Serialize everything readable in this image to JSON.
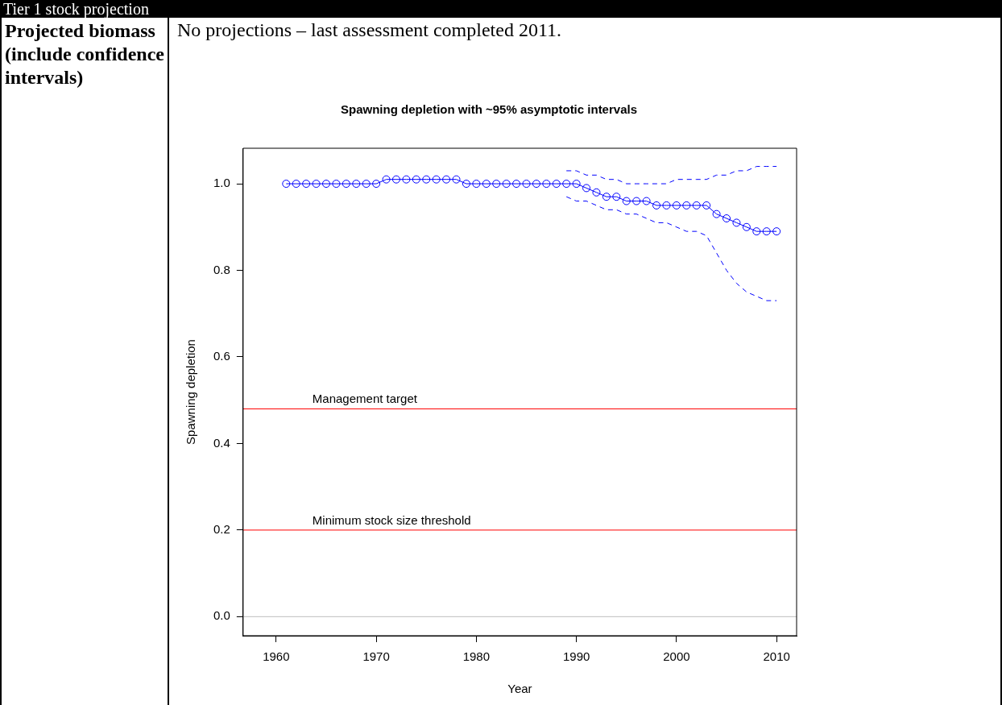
{
  "chart_data": {
    "type": "line",
    "title": "Spawning depletion with ~95% asymptotic intervals",
    "xlabel": "Year",
    "ylabel": "Spawning depletion",
    "annotations": [
      "Tier 1 stock projection",
      "Projected biomass (include confidence intervals)",
      "No projections – last assessment completed 2011."
    ],
    "x": [
      1961,
      1962,
      1963,
      1964,
      1965,
      1966,
      1967,
      1968,
      1969,
      1970,
      1971,
      1972,
      1973,
      1974,
      1975,
      1976,
      1977,
      1978,
      1979,
      1980,
      1981,
      1982,
      1983,
      1984,
      1985,
      1986,
      1987,
      1988,
      1989,
      1990,
      1991,
      1992,
      1993,
      1994,
      1995,
      1996,
      1997,
      1998,
      1999,
      2000,
      2001,
      2002,
      2003,
      2004,
      2005,
      2006,
      2007,
      2008,
      2009,
      2010
    ],
    "series": [
      {
        "color": "#0000ff",
        "values": [
          1.0,
          1.0,
          1.0,
          1.0,
          1.0,
          1.0,
          1.0,
          1.0,
          1.0,
          1.0,
          1.01,
          1.01,
          1.01,
          1.01,
          1.01,
          1.01,
          1.01,
          1.01,
          1.0,
          1.0,
          1.0,
          1.0,
          1.0,
          1.0,
          1.0,
          1.0,
          1.0,
          1.0,
          1.0,
          1.0,
          0.99,
          0.98,
          0.97,
          0.97,
          0.96,
          0.96,
          0.96,
          0.95,
          0.95,
          0.95,
          0.95,
          0.95,
          0.95,
          0.93,
          0.92,
          0.91,
          0.9,
          0.89,
          0.89,
          0.89
        ]
      },
      {
        "color": "#0000ff",
        "line_style": "dashed",
        "marker": "none",
        "values": [
          null,
          null,
          null,
          null,
          null,
          null,
          null,
          null,
          null,
          null,
          null,
          null,
          null,
          null,
          null,
          null,
          null,
          null,
          null,
          null,
          null,
          null,
          null,
          null,
          null,
          null,
          null,
          null,
          1.03,
          1.03,
          1.02,
          1.02,
          1.01,
          1.01,
          1.0,
          1.0,
          1.0,
          1.0,
          1.0,
          1.01,
          1.01,
          1.01,
          1.01,
          1.02,
          1.02,
          1.03,
          1.03,
          1.04,
          1.04,
          1.04
        ]
      },
      {
        "color": "#0000ff",
        "line_style": "dashed",
        "marker": "none",
        "values": [
          null,
          null,
          null,
          null,
          null,
          null,
          null,
          null,
          null,
          null,
          null,
          null,
          null,
          null,
          null,
          null,
          null,
          null,
          null,
          null,
          null,
          null,
          null,
          null,
          null,
          null,
          null,
          null,
          0.97,
          0.96,
          0.96,
          0.95,
          0.94,
          0.94,
          0.93,
          0.93,
          0.92,
          0.91,
          0.91,
          0.9,
          0.89,
          0.89,
          0.88,
          0.84,
          0.8,
          0.77,
          0.75,
          0.74,
          0.73,
          0.73
        ]
      }
    ],
    "xlim": [
      1956.7,
      2012
    ],
    "xticks": [
      1960,
      1970,
      1980,
      1990,
      2000,
      2010
    ],
    "ylim": [
      -0.044,
      1.082
    ],
    "yticks": [
      {
        "value": 0,
        "label": "0.0"
      },
      0.2,
      0.4,
      0.6,
      0.8,
      {
        "value": 1,
        "label": "1.0"
      }
    ],
    "ref_lines": [
      {
        "axis": "y",
        "value": 0.48,
        "label": "Management target",
        "color": "#ff0000"
      },
      {
        "axis": "y",
        "value": 0.2,
        "label": "Minimum stock size threshold",
        "color": "#ff0000"
      },
      {
        "axis": "y",
        "value": 0.0,
        "color": "#bebebe"
      }
    ],
    "marker": "circle",
    "grid": false,
    "legend": false
  }
}
